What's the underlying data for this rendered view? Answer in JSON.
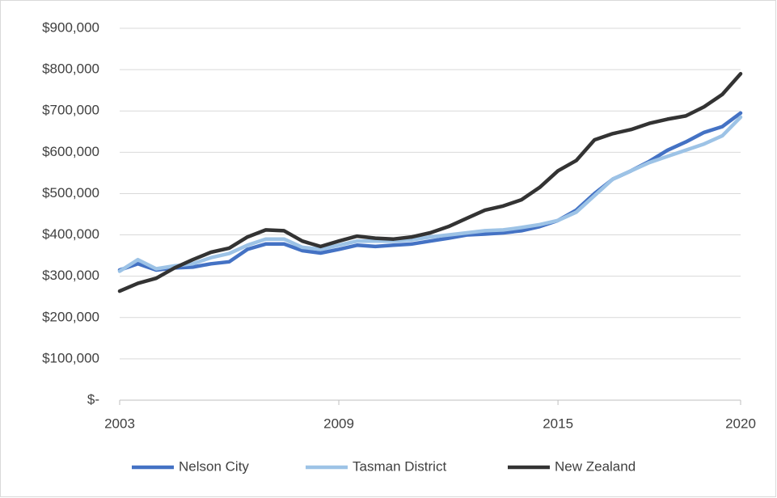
{
  "chart_data": {
    "type": "line",
    "x": [
      2003,
      2003.5,
      2004,
      2004.5,
      2005,
      2005.5,
      2006,
      2006.5,
      2007,
      2007.5,
      2008,
      2008.5,
      2009,
      2009.5,
      2010,
      2010.5,
      2011,
      2011.5,
      2012,
      2012.5,
      2013,
      2013.5,
      2014,
      2014.5,
      2015,
      2015.5,
      2016,
      2016.5,
      2017,
      2017.5,
      2018,
      2018.5,
      2019,
      2019.5,
      2020
    ],
    "series": [
      {
        "name": "Nelson City",
        "color": "#4472c4",
        "values": [
          315000,
          330000,
          315000,
          320000,
          322000,
          330000,
          335000,
          365000,
          378000,
          378000,
          362000,
          356000,
          365000,
          375000,
          372000,
          375000,
          378000,
          385000,
          392000,
          400000,
          402000,
          405000,
          410000,
          420000,
          435000,
          460000,
          500000,
          535000,
          555000,
          578000,
          605000,
          625000,
          648000,
          662000,
          695000
        ]
      },
      {
        "name": "Tasman District",
        "color": "#9dc3e6",
        "values": [
          312000,
          340000,
          318000,
          325000,
          330000,
          345000,
          355000,
          375000,
          390000,
          390000,
          370000,
          365000,
          375000,
          385000,
          385000,
          385000,
          388000,
          395000,
          400000,
          405000,
          410000,
          412000,
          418000,
          425000,
          435000,
          455000,
          495000,
          535000,
          555000,
          575000,
          590000,
          605000,
          620000,
          640000,
          685000
        ]
      },
      {
        "name": "New Zealand",
        "color": "#333333",
        "values": [
          264000,
          283000,
          295000,
          320000,
          340000,
          358000,
          368000,
          395000,
          412000,
          410000,
          385000,
          372000,
          385000,
          397000,
          392000,
          390000,
          395000,
          405000,
          420000,
          440000,
          460000,
          470000,
          485000,
          515000,
          555000,
          580000,
          630000,
          645000,
          655000,
          670000,
          680000,
          688000,
          710000,
          740000,
          790000
        ]
      }
    ],
    "xlim": [
      2003,
      2020
    ],
    "xticks": [
      2003,
      2009,
      2015,
      2020
    ],
    "ylim": [
      0,
      900000
    ],
    "yticks": [
      {
        "value": 0,
        "label": "$-"
      },
      {
        "value": 100000,
        "label": "$100,000"
      },
      {
        "value": 200000,
        "label": "$200,000"
      },
      {
        "value": 300000,
        "label": "$300,000"
      },
      {
        "value": 400000,
        "label": "$400,000"
      },
      {
        "value": 500000,
        "label": "$500,000"
      },
      {
        "value": 600000,
        "label": "$600,000"
      },
      {
        "value": 700000,
        "label": "$700,000"
      },
      {
        "value": 800000,
        "label": "$800,000"
      },
      {
        "value": 900000,
        "label": "$900,000"
      }
    ],
    "grid": true,
    "legend": "bottom"
  }
}
